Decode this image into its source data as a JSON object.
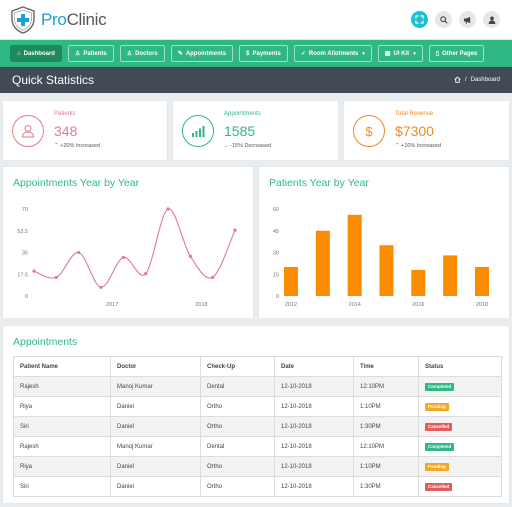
{
  "app": {
    "name_pro": "Pro",
    "name_clinic": "Clinic"
  },
  "topbar": {
    "icons": [
      "fullscreen-icon",
      "search-icon",
      "bullhorn-icon",
      "user-icon"
    ]
  },
  "nav": [
    {
      "label": "Dashboard",
      "icon": "home-icon",
      "active": true
    },
    {
      "label": "Patients",
      "icon": "user-icon"
    },
    {
      "label": "Doctors",
      "icon": "user-icon"
    },
    {
      "label": "Appointments",
      "icon": "edit-icon"
    },
    {
      "label": "Payments",
      "icon": "dollar-icon"
    },
    {
      "label": "Room Allotments",
      "icon": "check-icon",
      "dropdown": true
    },
    {
      "label": "UI Kit",
      "icon": "grid-icon",
      "dropdown": true
    },
    {
      "label": "Other Pages",
      "icon": "file-icon"
    }
  ],
  "header": {
    "title": "Quick Statistics",
    "breadcrumb": "Dashboard"
  },
  "stats": [
    {
      "label": "Patients",
      "value": "348",
      "trend": "+20% Increased",
      "trend_dir": "up",
      "color": "#e07b8d"
    },
    {
      "label": "Appointments",
      "value": "1585",
      "trend": "-15% Decreased",
      "trend_dir": "down",
      "color": "#2fb883"
    },
    {
      "label": "Total Revenue",
      "value": "$7300",
      "trend": "+10% Increased",
      "trend_dir": "up",
      "color": "#f08a24"
    }
  ],
  "charts": {
    "appointments_title": "Appointments Year by Year",
    "patients_title": "Patients Year by Year"
  },
  "chart_data": [
    {
      "type": "line",
      "title": "Appointments Year by Year",
      "yticks": [
        "0",
        "17.5",
        "35",
        "52.5",
        "70"
      ],
      "ylim": [
        0,
        70
      ],
      "xtick_labels": [
        "2017",
        "2018"
      ],
      "x": [
        0,
        1,
        2,
        3,
        4,
        5,
        6,
        7,
        8,
        9
      ],
      "values": [
        20,
        15,
        35,
        7,
        31,
        18,
        70,
        32,
        15,
        53
      ],
      "xtick_positions": [
        3.5,
        7.5
      ],
      "color": "#e07b8d"
    },
    {
      "type": "bar",
      "title": "Patients Year by Year",
      "yticks": [
        "0",
        "15",
        "30",
        "45",
        "60"
      ],
      "ylim": [
        0,
        60
      ],
      "xtick_labels": [
        "2012",
        "2014",
        "2016",
        "2018"
      ],
      "values": [
        20,
        45,
        56,
        35,
        18,
        28,
        20
      ],
      "xtick_positions": [
        0,
        2,
        4,
        6
      ],
      "color": "#fb8c00"
    }
  ],
  "appointments": {
    "title": "Appointments",
    "columns": [
      "Patient Name",
      "Doctor",
      "Check-Up",
      "Date",
      "Time",
      "Status"
    ],
    "rows": [
      {
        "patient": "Rajesh",
        "doctor": "Manoj Kumar",
        "checkup": "Dental",
        "date": "12-10-2018",
        "time": "12:10PM",
        "status": "Completed",
        "status_color": "#2fb883"
      },
      {
        "patient": "Riya",
        "doctor": "Daniel",
        "checkup": "Ortho",
        "date": "12-10-2018",
        "time": "1:10PM",
        "status": "Pending",
        "status_color": "#f5a623"
      },
      {
        "patient": "Siri",
        "doctor": "Daniel",
        "checkup": "Ortho",
        "date": "12-10-2018",
        "time": "1:30PM",
        "status": "Cancelled",
        "status_color": "#e25c5c"
      },
      {
        "patient": "Rajesh",
        "doctor": "Manoj Kumar",
        "checkup": "Dental",
        "date": "12-10-2018",
        "time": "12:10PM",
        "status": "Completed",
        "status_color": "#2fb883"
      },
      {
        "patient": "Riya",
        "doctor": "Daniel",
        "checkup": "Ortho",
        "date": "12-10-2018",
        "time": "1:10PM",
        "status": "Pending",
        "status_color": "#f5a623"
      },
      {
        "patient": "Siri",
        "doctor": "Daniel",
        "checkup": "Ortho",
        "date": "12-10-2018",
        "time": "1:30PM",
        "status": "Cancelled",
        "status_color": "#e25c5c"
      }
    ]
  }
}
